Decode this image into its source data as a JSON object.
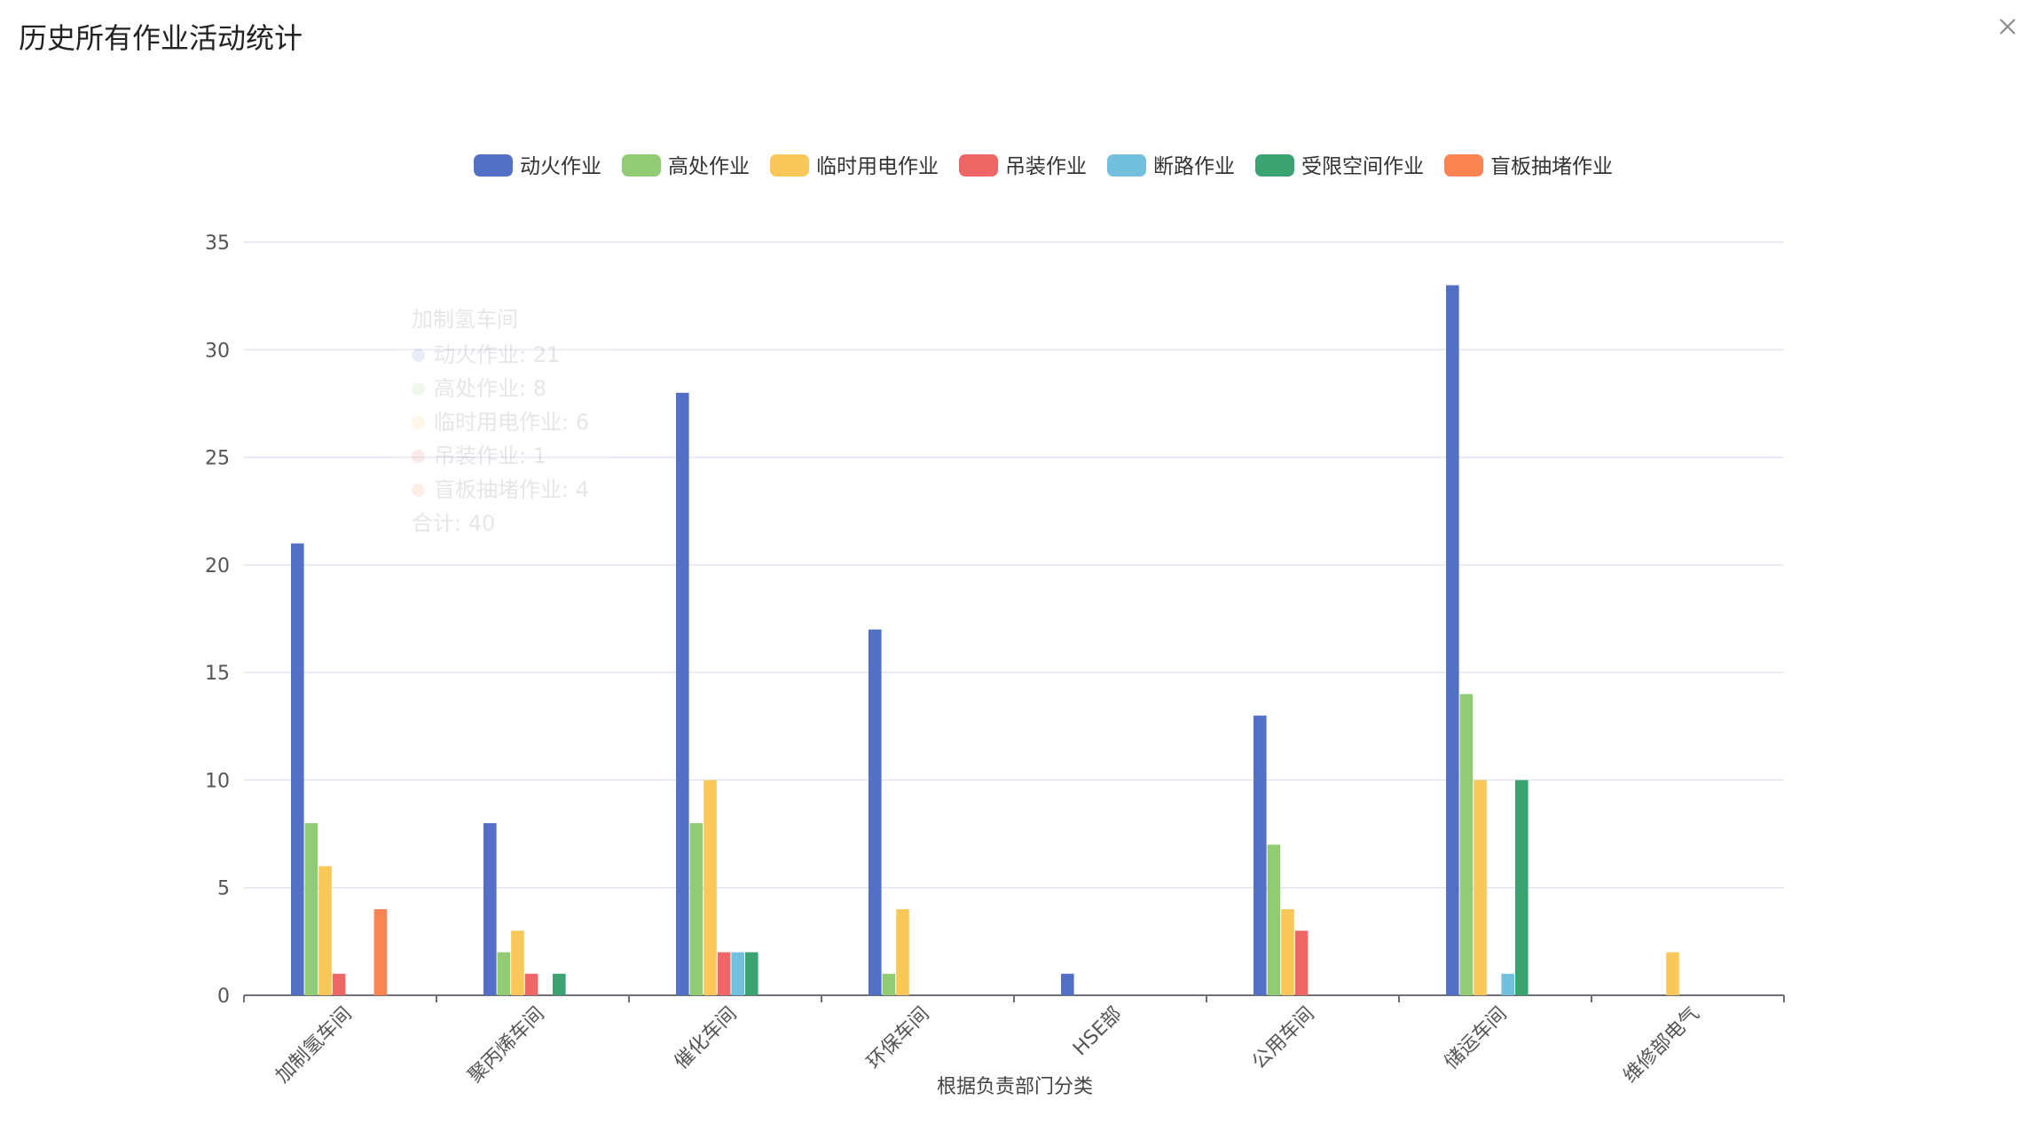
{
  "header": {
    "title": "历史所有作业活动统计"
  },
  "tooltip": {
    "title": "加制氢车间",
    "rows": [
      {
        "label": "动火作业: 21",
        "color": "#5470c6"
      },
      {
        "label": "高处作业: 8",
        "color": "#91cc75"
      },
      {
        "label": "临时用电作业: 6",
        "color": "#fac858"
      },
      {
        "label": "吊装作业: 1",
        "color": "#ee6666"
      },
      {
        "label": "盲板抽堵作业: 4",
        "color": "#fc8452"
      }
    ],
    "total": "合计: 40"
  },
  "chart_data": {
    "type": "bar",
    "title": "",
    "xlabel": "根据负责部门分类",
    "ylabel": "",
    "ylim": [
      0,
      35
    ],
    "yticks": [
      0,
      5,
      10,
      15,
      20,
      25,
      30,
      35
    ],
    "grid": true,
    "legend_position": "top-center",
    "categories": [
      "加制氢车间",
      "聚丙烯车间",
      "催化车间",
      "环保车间",
      "HSE部",
      "公用车间",
      "储运车间",
      "维修部电气"
    ],
    "series": [
      {
        "name": "动火作业",
        "color": "#5470c6",
        "values": [
          21,
          8,
          28,
          17,
          1,
          13,
          33,
          0
        ]
      },
      {
        "name": "高处作业",
        "color": "#91cc75",
        "values": [
          8,
          2,
          8,
          1,
          0,
          7,
          14,
          0
        ]
      },
      {
        "name": "临时用电作业",
        "color": "#fac858",
        "values": [
          6,
          3,
          10,
          4,
          0,
          4,
          10,
          2
        ]
      },
      {
        "name": "吊装作业",
        "color": "#ee6666",
        "values": [
          1,
          1,
          2,
          0,
          0,
          3,
          0,
          0
        ]
      },
      {
        "name": "断路作业",
        "color": "#73c0de",
        "values": [
          0,
          0,
          2,
          0,
          0,
          0,
          1,
          0
        ]
      },
      {
        "name": "受限空间作业",
        "color": "#3ba272",
        "values": [
          0,
          1,
          2,
          0,
          0,
          0,
          10,
          0
        ]
      },
      {
        "name": "盲板抽堵作业",
        "color": "#fc8452",
        "values": [
          4,
          0,
          0,
          0,
          0,
          0,
          0,
          0
        ]
      }
    ]
  }
}
